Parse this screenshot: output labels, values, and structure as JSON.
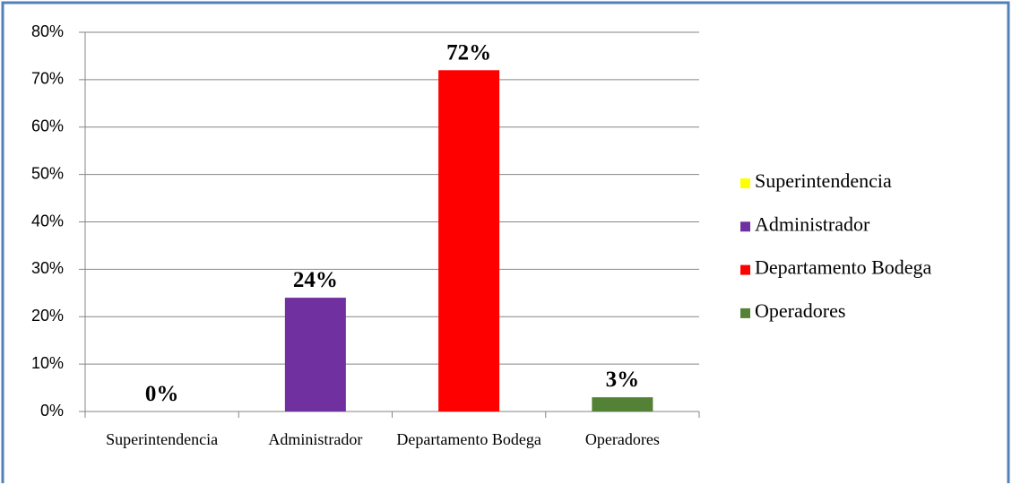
{
  "chart_data": {
    "type": "bar",
    "categories": [
      "Superintendencia",
      "Administrador",
      "Departamento Bodega",
      "Operadores"
    ],
    "values": [
      0,
      24,
      72,
      3
    ],
    "value_labels": [
      "0%",
      "24%",
      "72%",
      "3%"
    ],
    "colors": [
      "#ffff00",
      "#7030a0",
      "#ff0000",
      "#538135"
    ],
    "ylim": [
      0,
      80
    ],
    "yticks": [
      {
        "value": 0,
        "label": "0%"
      },
      {
        "value": 10,
        "label": "10%"
      },
      {
        "value": 20,
        "label": "20%"
      },
      {
        "value": 30,
        "label": "30%"
      },
      {
        "value": 40,
        "label": "40%"
      },
      {
        "value": 50,
        "label": "50%"
      },
      {
        "value": 60,
        "label": "60%"
      },
      {
        "value": 70,
        "label": "70%"
      },
      {
        "value": 80,
        "label": "80%"
      }
    ],
    "grid": true,
    "legend": "right"
  }
}
